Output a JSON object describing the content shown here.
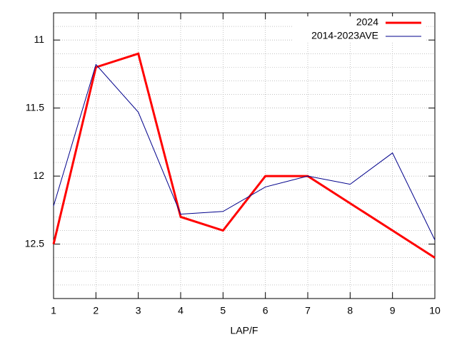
{
  "chart_data": {
    "type": "line",
    "x_label": "LAP/F",
    "x": [
      1,
      2,
      3,
      4,
      5,
      6,
      7,
      8,
      9,
      10
    ],
    "series": [
      {
        "name": "2024",
        "color": "#ff0000",
        "width": 3,
        "values": [
          12.5,
          11.2,
          11.1,
          12.3,
          12.4,
          12.0,
          12.0,
          12.2,
          12.4,
          12.6
        ]
      },
      {
        "name": "2014-2023AVE",
        "color": "#00008b",
        "width": 1,
        "values": [
          12.22,
          11.18,
          11.53,
          12.28,
          12.26,
          12.08,
          12.0,
          12.06,
          11.83,
          12.47
        ]
      }
    ],
    "xlim": [
      1,
      10
    ],
    "xticks": [
      1,
      2,
      3,
      4,
      5,
      6,
      7,
      8,
      9,
      10
    ],
    "ylim": [
      10.8,
      12.9
    ],
    "yticks": [
      11,
      11.5,
      12,
      12.5
    ],
    "y_reversed": true,
    "grid": true,
    "minor_grid": true,
    "legend": "top-right"
  }
}
